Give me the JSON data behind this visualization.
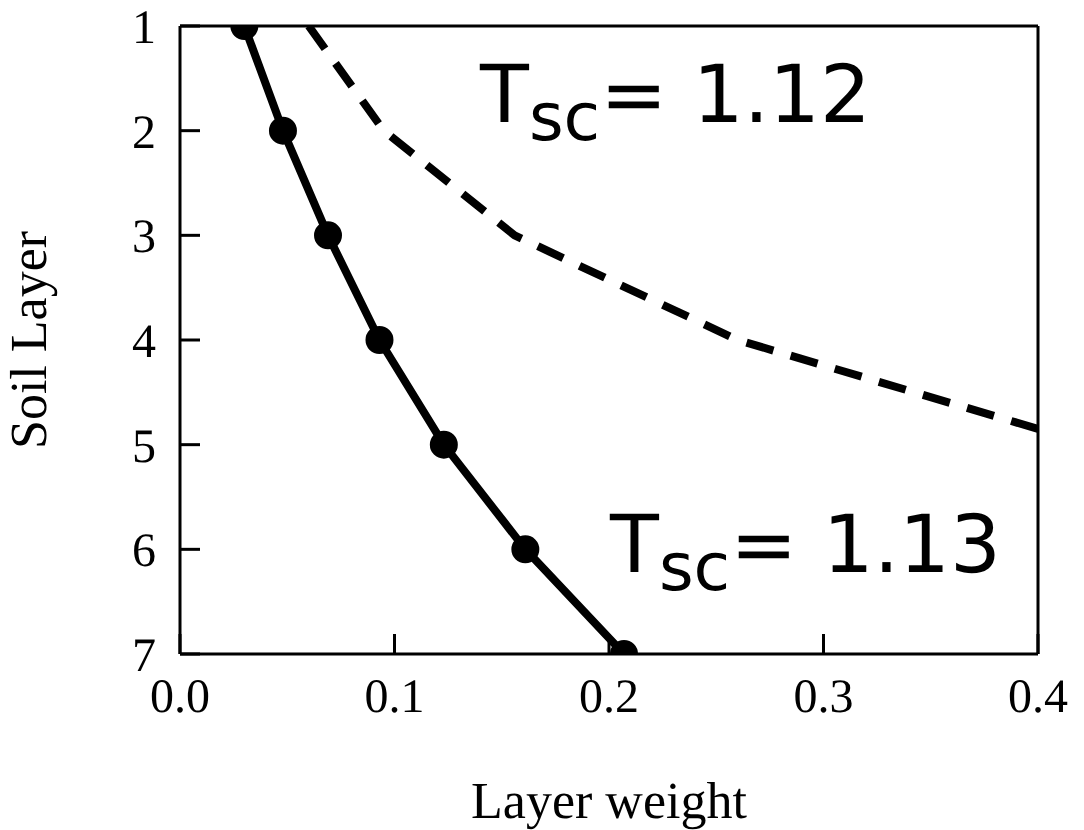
{
  "chart_data": {
    "type": "line",
    "xlabel": "Layer weight",
    "ylabel": "Soil Layer",
    "xlim": [
      0,
      0.4
    ],
    "xticks": [
      {
        "value": 0,
        "label": "0.0"
      },
      0.1,
      0.2,
      0.3,
      0.4
    ],
    "ylim": [
      7,
      1
    ],
    "yticks": [
      1,
      2,
      3,
      4,
      5,
      6,
      7
    ],
    "grid": false,
    "series": [
      {
        "color": "#000000",
        "marker": "circle",
        "line_style": "solid",
        "x": [
          0.03,
          0.048,
          0.069,
          0.093,
          0.123,
          0.161,
          0.207
        ],
        "values": [
          1,
          2,
          3,
          4,
          5,
          6,
          7
        ]
      },
      {
        "color": "#000000",
        "marker": "none",
        "line_style": "dashed",
        "x": [
          0.06,
          0.095,
          0.156,
          0.26,
          0.4
        ],
        "values": [
          1,
          2,
          3,
          4,
          4.85
        ]
      }
    ],
    "annotations": [
      "T$_{sc}$= 1.12",
      "T$_{sc}$= 1.13"
    ]
  }
}
